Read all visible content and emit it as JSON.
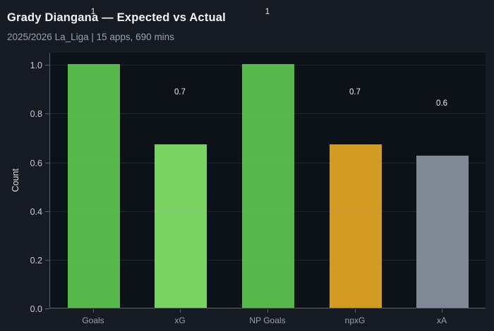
{
  "header": {
    "title": "Grady Diangana — Expected vs Actual",
    "subtitle": "2025/2026 La_Liga | 15 apps, 690 mins"
  },
  "chart_data": {
    "type": "bar",
    "title": "Grady Diangana — Expected vs Actual",
    "subtitle": "2025/2026 La_Liga | 15 apps, 690 mins",
    "categories": [
      "Goals",
      "xG",
      "NP Goals",
      "npxG",
      "xA"
    ],
    "values": [
      1.0,
      0.67,
      1.0,
      0.67,
      0.625
    ],
    "value_labels": [
      "1",
      "0.7",
      "1",
      "0.7",
      "0.6"
    ],
    "bar_colors": [
      "#56b84b",
      "#7ad262",
      "#56b84b",
      "#d49b23",
      "#808795"
    ],
    "xlabel": "",
    "ylabel": "Count",
    "ylim": [
      0,
      1.05
    ],
    "yticks": [
      0.0,
      0.2,
      0.4,
      0.6,
      0.8,
      1.0
    ],
    "ytick_labels": [
      "0.0",
      "0.2",
      "0.4",
      "0.6",
      "0.8",
      "1.0"
    ],
    "grid": "horizontal",
    "legend": "none"
  },
  "colors": {
    "page_bg": "#161a23",
    "plot_bg": "#0d1118",
    "grid": "rgba(150,157,170,0.16)",
    "axis": "#5b6170",
    "title": "#f2f4f6",
    "subtitle": "#9aa1ab",
    "ytick": "#c5c9d1",
    "xtick": "#9aa1ab",
    "value_label": "#e8eaed",
    "axis_label": "#dde0e5"
  }
}
